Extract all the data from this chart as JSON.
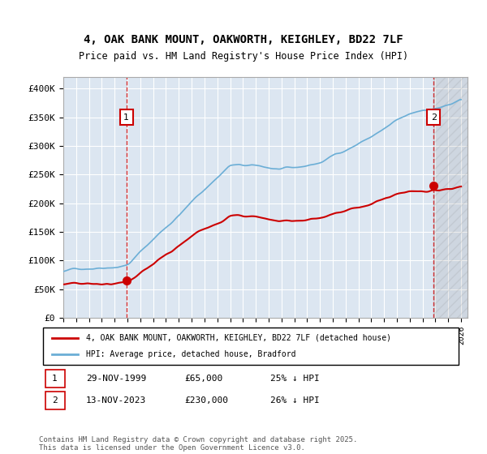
{
  "title_line1": "4, OAK BANK MOUNT, OAKWORTH, KEIGHLEY, BD22 7LF",
  "title_line2": "Price paid vs. HM Land Registry's House Price Index (HPI)",
  "ylabel_ticks": [
    "£0",
    "£50K",
    "£100K",
    "£150K",
    "£200K",
    "£250K",
    "£300K",
    "£350K",
    "£400K"
  ],
  "ytick_values": [
    0,
    50000,
    100000,
    150000,
    200000,
    250000,
    300000,
    350000,
    400000
  ],
  "ylim": [
    0,
    420000
  ],
  "xlim_start": 1995.0,
  "xlim_end": 2026.5,
  "bg_color": "#dce6f1",
  "plot_bg": "#dce6f1",
  "grid_color": "#ffffff",
  "hpi_color": "#6baed6",
  "price_color": "#cc0000",
  "sale1_year": 1999.91,
  "sale1_price": 65000,
  "sale2_year": 2023.87,
  "sale2_price": 230000,
  "annotation1": "1",
  "annotation2": "2",
  "legend_line1": "4, OAK BANK MOUNT, OAKWORTH, KEIGHLEY, BD22 7LF (detached house)",
  "legend_line2": "HPI: Average price, detached house, Bradford",
  "note1_label": "1",
  "note1_date": "29-NOV-1999",
  "note1_price": "£65,000",
  "note1_hpi": "25% ↓ HPI",
  "note2_label": "2",
  "note2_date": "13-NOV-2023",
  "note2_price": "£230,000",
  "note2_hpi": "26% ↓ HPI",
  "footer": "Contains HM Land Registry data © Crown copyright and database right 2025.\nThis data is licensed under the Open Government Licence v3.0."
}
